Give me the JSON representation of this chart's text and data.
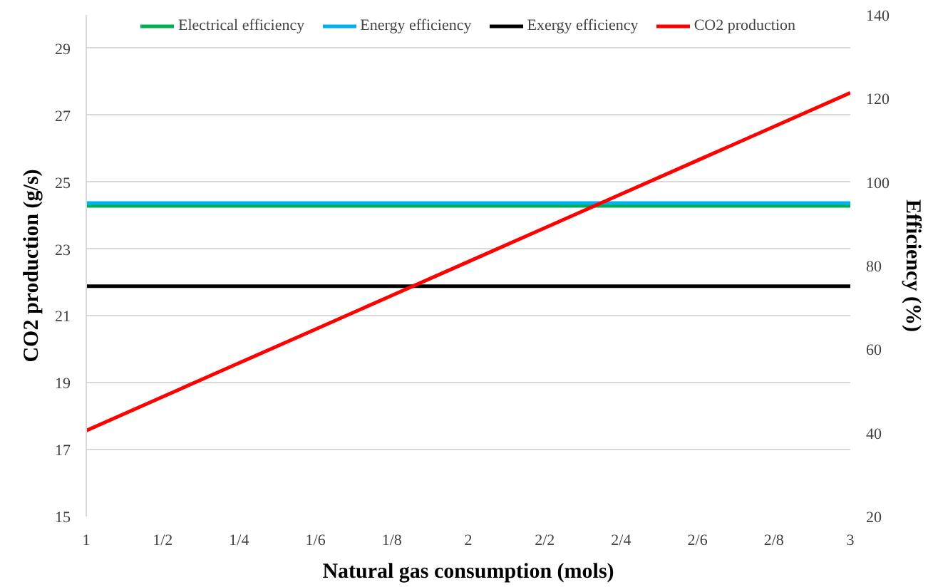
{
  "chart_data": {
    "type": "line",
    "xlabel": "Natural gas consumption (mols)",
    "ylabel": "CO2 production (g/s)",
    "y2label": "Efficiency (%)",
    "categories": [
      "1",
      "1/2",
      "1/4",
      "1/6",
      "1/8",
      "2",
      "2/2",
      "2/4",
      "2/6",
      "2/8",
      "3"
    ],
    "series": [
      {
        "name": "Electrical efficiency",
        "color": "#00b050",
        "axis": "y2",
        "values": [
          94.3,
          94.3,
          94.3,
          94.3,
          94.3,
          94.3,
          94.3,
          94.3,
          94.3,
          94.3,
          94.3
        ]
      },
      {
        "name": "Energy efficiency",
        "color": "#00b0f0",
        "axis": "y2",
        "values": [
          95.0,
          95.0,
          95.0,
          95.0,
          95.0,
          95.0,
          95.0,
          95.0,
          95.0,
          95.0,
          95.0
        ]
      },
      {
        "name": "Exergy efficiency",
        "color": "#000000",
        "axis": "y2",
        "values": [
          75.1,
          75.1,
          75.1,
          75.1,
          75.1,
          75.1,
          75.1,
          75.1,
          75.1,
          75.1,
          75.1
        ]
      },
      {
        "name": "CO2 production",
        "color": "#ff0000",
        "values": [
          17.57,
          18.58,
          19.59,
          20.6,
          21.61,
          22.62,
          23.63,
          24.64,
          25.65,
          26.66,
          27.67
        ]
      }
    ],
    "ylim": [
      15,
      30
    ],
    "yticks": [
      15,
      17,
      19,
      21,
      23,
      25,
      27,
      29
    ],
    "y2lim": [
      20,
      140
    ],
    "y2ticks": [
      20,
      40,
      60,
      80,
      100,
      120,
      140
    ],
    "grid": "y",
    "legend": "top",
    "marker": "none",
    "line_style": "solid"
  }
}
